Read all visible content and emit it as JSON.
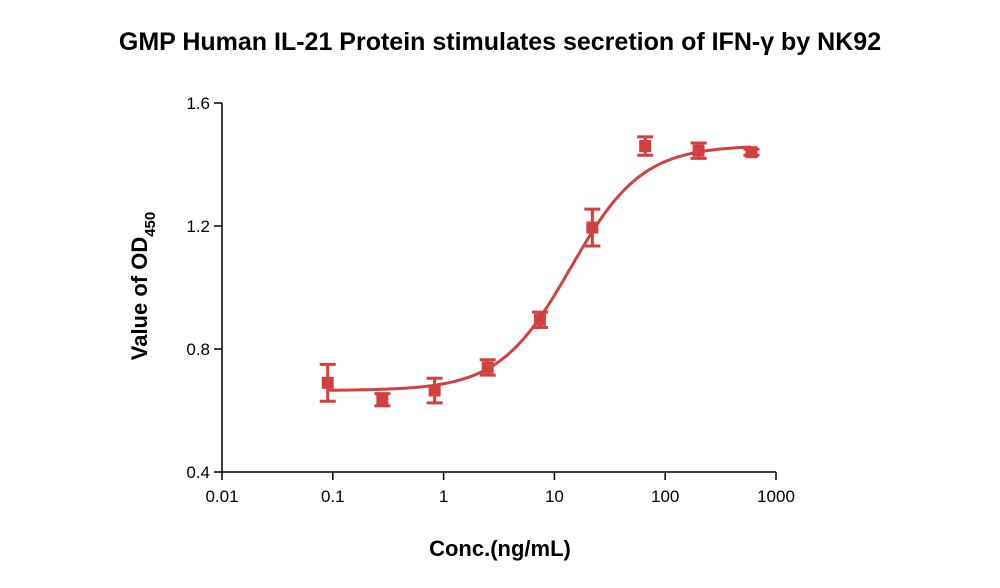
{
  "chart_data": {
    "type": "scatter",
    "title": "GMP Human IL-21 Protein stimulates secretion of IFN-γ by NK92",
    "xlabel": "Conc.(ng/mL)",
    "ylabel": {
      "main": "Value of OD",
      "sub": "450"
    },
    "x_scale": "log",
    "xlim": [
      0.01,
      1000
    ],
    "ylim": [
      0.4,
      1.6
    ],
    "x_ticks": [
      0.01,
      0.1,
      1,
      10,
      100,
      1000
    ],
    "x_tick_labels": [
      "0.01",
      "0.1",
      "1",
      "10",
      "100",
      "1000"
    ],
    "y_ticks": [
      0.4,
      0.8,
      1.2,
      1.6
    ],
    "y_tick_labels": [
      "0.4",
      "0.8",
      "1.2",
      "1.6"
    ],
    "grid": false,
    "color": "#d2403f",
    "series": [
      {
        "x": [
          0.09,
          0.28,
          0.83,
          2.5,
          7.4,
          22,
          66,
          200,
          600
        ],
        "y": [
          0.69,
          0.635,
          0.665,
          0.74,
          0.895,
          1.195,
          1.46,
          1.445,
          1.44
        ],
        "err": [
          0.06,
          0.02,
          0.04,
          0.025,
          0.025,
          0.06,
          0.03,
          0.025,
          0.01
        ]
      }
    ],
    "fit_curve": {
      "type": "4PL",
      "bottom": 0.665,
      "top": 1.462,
      "ec50": 14,
      "hill": 1.35
    }
  }
}
